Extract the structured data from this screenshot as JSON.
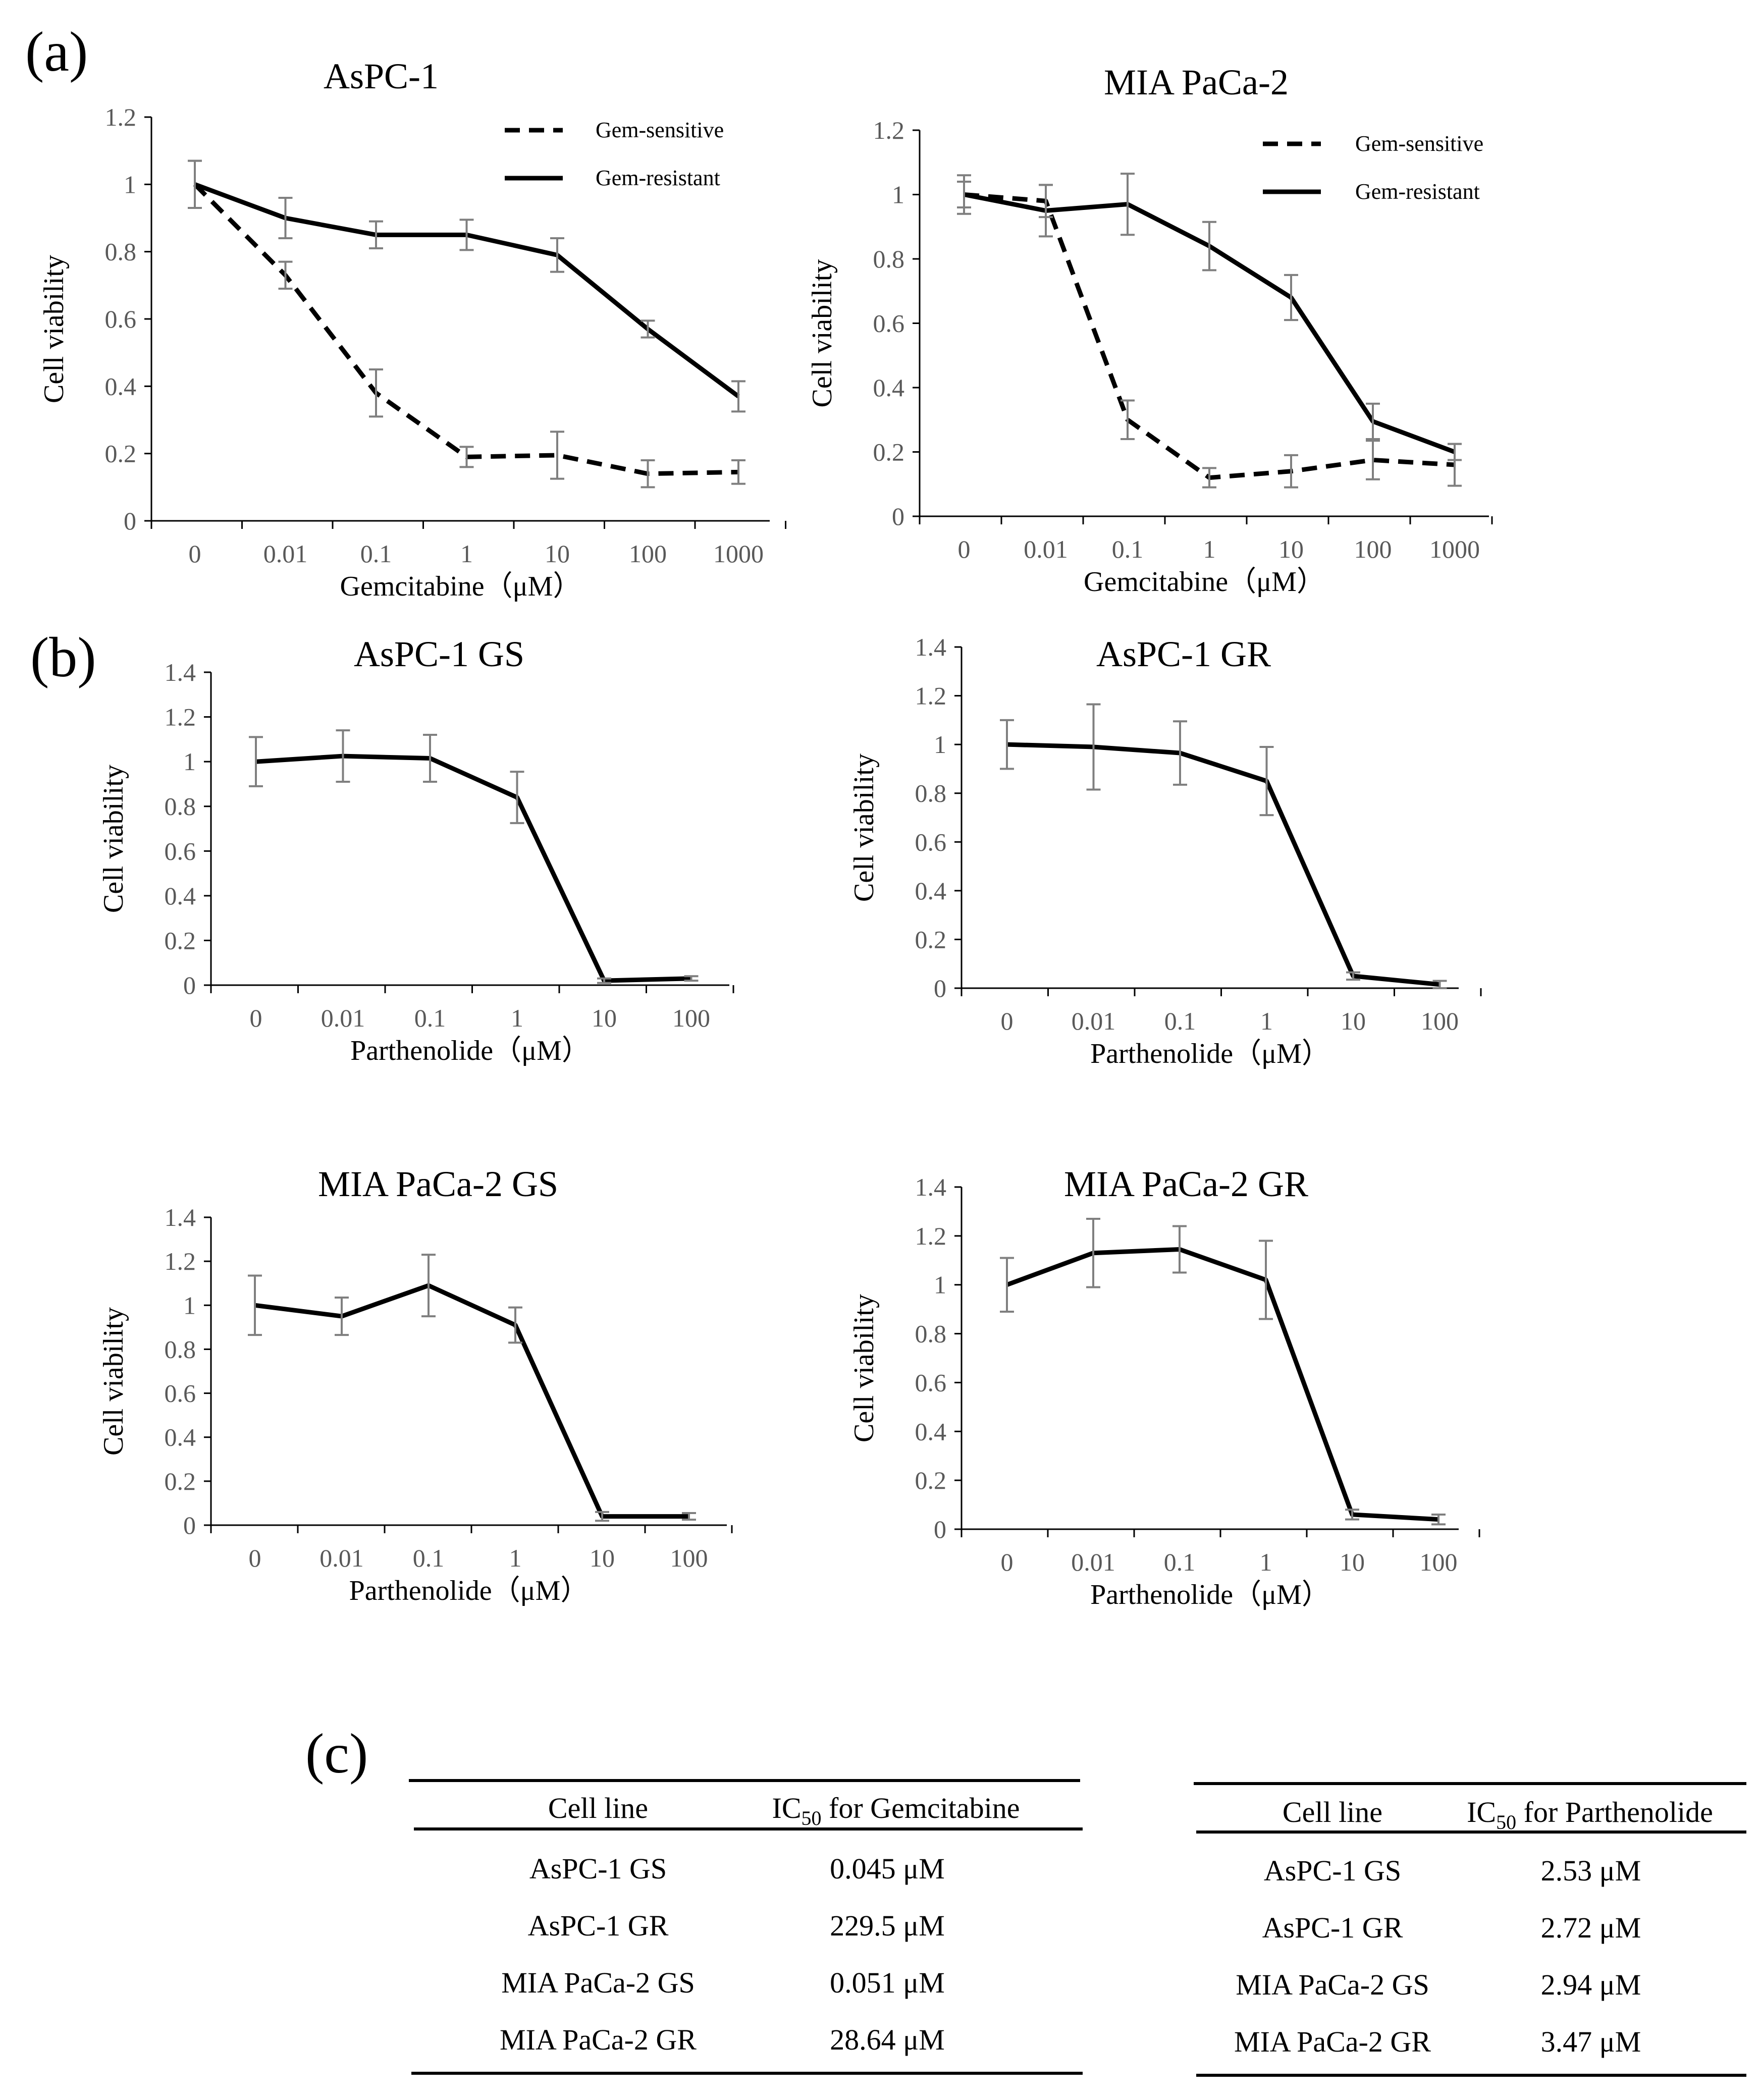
{
  "panels": {
    "a": "(a)",
    "b": "(b)",
    "c": "(c)"
  },
  "chart_data": [
    {
      "id": "a1",
      "type": "line",
      "title": "AsPC-1",
      "xlabel": "Gemcitabine（μM）",
      "ylabel": "Cell viability",
      "categories": [
        "0",
        "0.01",
        "0.1",
        "1",
        "10",
        "100",
        "1000"
      ],
      "ylim": [
        0,
        1.2
      ],
      "yticks": [
        "0",
        "0.2",
        "0.4",
        "0.6",
        "0.8",
        "1",
        "1.2"
      ],
      "legend_position": "top-right",
      "series": [
        {
          "name": "Gem-sensitive",
          "style": "dashed",
          "values": [
            1.0,
            0.73,
            0.38,
            0.19,
            0.195,
            0.14,
            0.145
          ],
          "errors": [
            0.07,
            0.04,
            0.07,
            0.03,
            0.07,
            0.04,
            0.035
          ]
        },
        {
          "name": "Gem-resistant",
          "style": "solid",
          "values": [
            1.0,
            0.9,
            0.85,
            0.85,
            0.79,
            0.57,
            0.37
          ],
          "errors": [
            0.07,
            0.06,
            0.04,
            0.045,
            0.05,
            0.025,
            0.045
          ]
        }
      ]
    },
    {
      "id": "a2",
      "type": "line",
      "title": "MIA PaCa-2",
      "xlabel": "Gemcitabine（μM）",
      "ylabel": "Cell viability",
      "categories": [
        "0",
        "0.01",
        "0.1",
        "1",
        "10",
        "100",
        "1000"
      ],
      "ylim": [
        0,
        1.2
      ],
      "yticks": [
        "0",
        "0.2",
        "0.4",
        "0.6",
        "0.8",
        "1",
        "1.2"
      ],
      "legend_position": "top-right",
      "series": [
        {
          "name": "Gem-sensitive",
          "style": "dashed",
          "values": [
            1.0,
            0.98,
            0.3,
            0.12,
            0.14,
            0.175,
            0.16
          ],
          "errors": [
            0.04,
            0.05,
            0.06,
            0.03,
            0.05,
            0.06,
            0.065
          ]
        },
        {
          "name": "Gem-resistant",
          "style": "solid",
          "values": [
            1.0,
            0.95,
            0.97,
            0.84,
            0.68,
            0.295,
            0.2
          ],
          "errors": [
            0.06,
            0.08,
            0.095,
            0.075,
            0.07,
            0.055,
            0.025
          ]
        }
      ]
    },
    {
      "id": "b1",
      "type": "line",
      "title": "AsPC-1 GS",
      "xlabel": "Parthenolide（μM）",
      "ylabel": "Cell viability",
      "categories": [
        "0",
        "0.01",
        "0.1",
        "1",
        "10",
        "100"
      ],
      "ylim": [
        0,
        1.4
      ],
      "yticks": [
        "0",
        "0.2",
        "0.4",
        "0.6",
        "0.8",
        "1",
        "1.2",
        "1.4"
      ],
      "series": [
        {
          "name": "",
          "style": "solid",
          "values": [
            1.0,
            1.025,
            1.015,
            0.84,
            0.02,
            0.03
          ],
          "errors": [
            0.11,
            0.115,
            0.105,
            0.115,
            0.01,
            0.01
          ]
        }
      ]
    },
    {
      "id": "b2",
      "type": "line",
      "title": "AsPC-1 GR",
      "xlabel": "Parthenolide（μM）",
      "ylabel": "Cell viability",
      "categories": [
        "0",
        "0.01",
        "0.1",
        "1",
        "10",
        "100"
      ],
      "ylim": [
        0,
        1.4
      ],
      "yticks": [
        "0",
        "0.2",
        "0.4",
        "0.6",
        "0.8",
        "1",
        "1.2",
        "1.4"
      ],
      "series": [
        {
          "name": "",
          "style": "solid",
          "values": [
            1.0,
            0.99,
            0.965,
            0.85,
            0.05,
            0.015
          ],
          "errors": [
            0.1,
            0.175,
            0.13,
            0.14,
            0.015,
            0.015
          ]
        }
      ]
    },
    {
      "id": "b3",
      "type": "line",
      "title": "MIA PaCa-2 GS",
      "xlabel": "Parthenolide（μM）",
      "ylabel": "Cell viability",
      "categories": [
        "0",
        "0.01",
        "0.1",
        "1",
        "10",
        "100"
      ],
      "ylim": [
        0,
        1.4
      ],
      "yticks": [
        "0",
        "0.2",
        "0.4",
        "0.6",
        "0.8",
        "1",
        "1.2",
        "1.4"
      ],
      "series": [
        {
          "name": "",
          "style": "solid",
          "values": [
            1.0,
            0.95,
            1.09,
            0.91,
            0.04,
            0.04
          ],
          "errors": [
            0.135,
            0.085,
            0.14,
            0.08,
            0.02,
            0.015
          ]
        }
      ]
    },
    {
      "id": "b4",
      "type": "line",
      "title": "MIA PaCa-2 GR",
      "xlabel": "Parthenolide（μM）",
      "ylabel": "Cell viability",
      "categories": [
        "0",
        "0.01",
        "0.1",
        "1",
        "10",
        "100"
      ],
      "ylim": [
        0,
        1.4
      ],
      "yticks": [
        "0",
        "0.2",
        "0.4",
        "0.6",
        "0.8",
        "1",
        "1.2",
        "1.4"
      ],
      "series": [
        {
          "name": "",
          "style": "solid",
          "values": [
            1.0,
            1.13,
            1.145,
            1.02,
            0.06,
            0.04
          ],
          "errors": [
            0.11,
            0.14,
            0.095,
            0.16,
            0.02,
            0.02
          ]
        }
      ]
    }
  ],
  "tables": [
    {
      "id": "gem",
      "type": "table",
      "headers": [
        "Cell line",
        "IC",
        "50",
        " for Gemcitabine"
      ],
      "rows": [
        [
          "AsPC-1 GS",
          "0.045 μM"
        ],
        [
          "AsPC-1 GR",
          "229.5 μM"
        ],
        [
          "MIA PaCa-2 GS",
          "0.051 μM"
        ],
        [
          "MIA PaCa-2 GR",
          "28.64 μM"
        ]
      ]
    },
    {
      "id": "parth",
      "type": "table",
      "headers": [
        "Cell line",
        "IC",
        "50",
        " for Parthenolide"
      ],
      "rows": [
        [
          "AsPC-1 GS",
          "2.53 μM"
        ],
        [
          "AsPC-1 GR",
          "2.72 μM"
        ],
        [
          "MIA PaCa-2 GS",
          "2.94 μM"
        ],
        [
          "MIA PaCa-2 GR",
          "3.47 μM"
        ]
      ]
    }
  ]
}
